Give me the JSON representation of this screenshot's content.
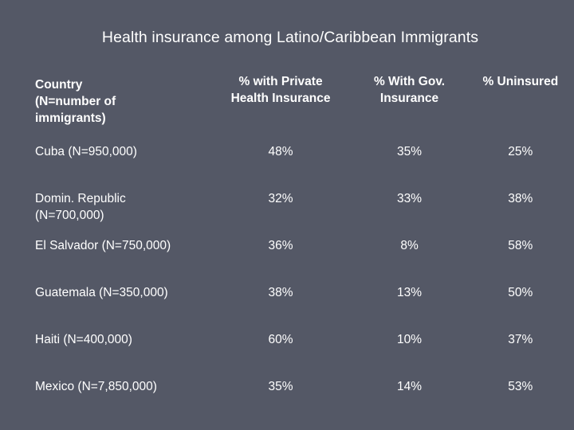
{
  "title": "Health insurance among Latino/Caribbean Immigrants",
  "table": {
    "headers": {
      "country": "Country\n(N=number of\nimmigrants)",
      "private": "% with Private\nHealth Insurance",
      "gov": "% With Gov.\nInsurance",
      "uninsured": "% Uninsured"
    },
    "rows": [
      {
        "country": "Cuba (N=950,000)",
        "private": "48%",
        "gov": "35%",
        "uninsured": "25%"
      },
      {
        "country": "Domin. Republic\n(N=700,000)",
        "private": "32%",
        "gov": "33%",
        "uninsured": "38%"
      },
      {
        "country": "El Salvador (N=750,000)",
        "private": "36%",
        "gov": "8%",
        "uninsured": "58%"
      },
      {
        "country": "Guatemala (N=350,000)",
        "private": "38%",
        "gov": "13%",
        "uninsured": "50%"
      },
      {
        "country": "Haiti  (N=400,000)",
        "private": "60%",
        "gov": "10%",
        "uninsured": "37%"
      },
      {
        "country": "Mexico (N=7,850,000)",
        "private": "35%",
        "gov": "14%",
        "uninsured": "53%"
      }
    ]
  }
}
